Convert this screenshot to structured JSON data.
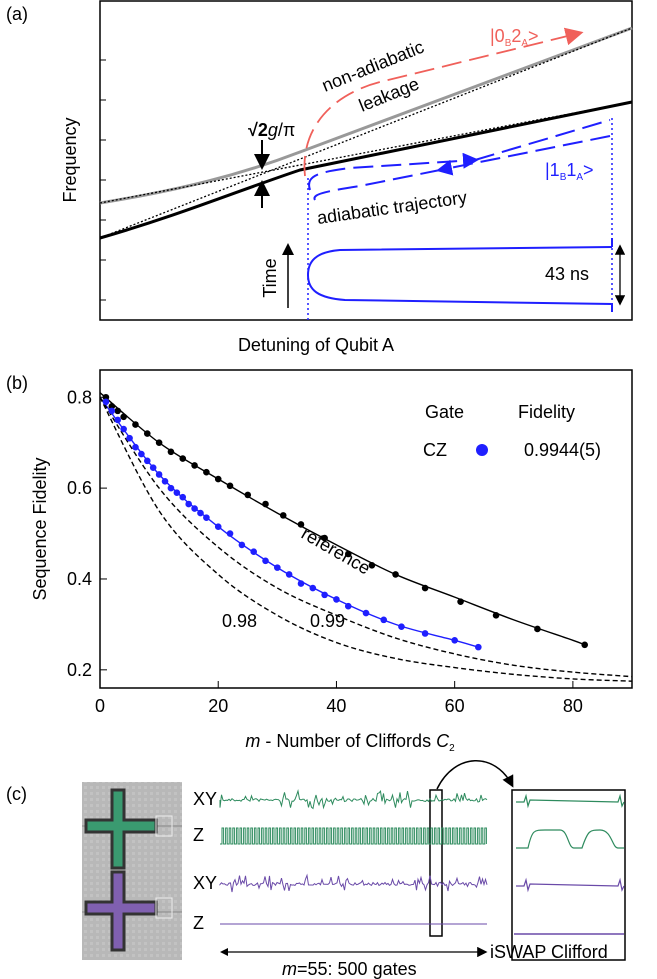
{
  "panel_a": {
    "label": "(a)",
    "y_axis_label": "Frequency",
    "x_axis_label": "Detuning of Qubit A",
    "coupling": [
      "√2",
      "g",
      "/",
      "π"
    ],
    "leak_1": "non-adiabatic",
    "leak_2": "leakage",
    "state_02": [
      "|0",
      "B",
      "2",
      "A",
      ">"
    ],
    "state_11": [
      "|1",
      "B",
      "1",
      "A",
      ">"
    ],
    "trajectory": "adiabatic trajectory",
    "time": "Time",
    "duration": "43 ns"
  },
  "chart_data": {
    "type": "scatter",
    "label": "(b)",
    "y_axis_label": "Sequence Fidelity",
    "x_axis_label": [
      "m",
      " - Number of Cliffords ",
      "C",
      "2"
    ],
    "xlim": [
      0,
      90
    ],
    "xticks": [
      0,
      20,
      40,
      60,
      80
    ],
    "ylim": [
      0.16,
      0.86
    ],
    "yticks": [
      0.2,
      0.4,
      0.6,
      0.8
    ],
    "legend": {
      "headers": [
        "Gate",
        "Fidelity"
      ],
      "fidelity": "0.9944(5)"
    },
    "series": [
      {
        "name": "reference",
        "color": "#000000",
        "x": [
          1,
          2,
          3,
          4,
          6,
          8,
          10,
          12,
          14,
          16,
          18,
          20,
          22,
          25,
          28,
          31,
          34,
          38,
          42,
          46,
          50,
          55,
          61,
          67,
          74,
          82
        ],
        "values": [
          0.8,
          0.78,
          0.77,
          0.757,
          0.74,
          0.72,
          0.7,
          0.68,
          0.665,
          0.65,
          0.635,
          0.62,
          0.605,
          0.585,
          0.565,
          0.54,
          0.52,
          0.49,
          0.455,
          0.43,
          0.41,
          0.38,
          0.35,
          0.32,
          0.29,
          0.255
        ]
      },
      {
        "name": "CZ",
        "color": "#1f1fff",
        "x": [
          1,
          2,
          3,
          4,
          5,
          6,
          7,
          8,
          9,
          10,
          11,
          12,
          13,
          14,
          15,
          16,
          17,
          18,
          20,
          22,
          24,
          26,
          28,
          30,
          32,
          34,
          36,
          38,
          40,
          42,
          45,
          48,
          51,
          55,
          60,
          64
        ],
        "values": [
          0.79,
          0.77,
          0.75,
          0.73,
          0.71,
          0.69,
          0.675,
          0.66,
          0.645,
          0.63,
          0.615,
          0.6,
          0.59,
          0.58,
          0.565,
          0.555,
          0.545,
          0.535,
          0.515,
          0.5,
          0.475,
          0.46,
          0.44,
          0.425,
          0.41,
          0.39,
          0.38,
          0.365,
          0.355,
          0.34,
          0.325,
          0.31,
          0.295,
          0.28,
          0.265,
          0.25
        ]
      }
    ],
    "fits": [
      {
        "color": "#000000",
        "x": [
          0,
          10,
          20,
          30,
          40,
          50,
          60,
          70,
          80,
          82
        ],
        "values": [
          0.81,
          0.7,
          0.62,
          0.545,
          0.475,
          0.41,
          0.36,
          0.31,
          0.265,
          0.255
        ]
      },
      {
        "color": "#1f1fff",
        "x": [
          0,
          10,
          20,
          30,
          40,
          50,
          60,
          64
        ],
        "values": [
          0.8,
          0.63,
          0.515,
          0.425,
          0.355,
          0.3,
          0.265,
          0.25
        ]
      },
      {
        "name": "0.99",
        "dashed": true,
        "color": "#000000",
        "x": [
          0,
          10,
          20,
          30,
          40,
          50,
          60,
          70,
          80,
          90
        ],
        "values": [
          0.8,
          0.6,
          0.47,
          0.38,
          0.32,
          0.27,
          0.235,
          0.21,
          0.195,
          0.185
        ]
      },
      {
        "name": "0.98",
        "dashed": true,
        "color": "#000000",
        "x": [
          0,
          10,
          20,
          30,
          40,
          50,
          60,
          70,
          80,
          90
        ],
        "values": [
          0.8,
          0.55,
          0.41,
          0.32,
          0.26,
          0.225,
          0.205,
          0.19,
          0.18,
          0.175
        ]
      }
    ]
  },
  "panel_c": {
    "label": "(c)",
    "rows": [
      "XY",
      "Z",
      "XY",
      "Z"
    ],
    "sequence": [
      "m",
      "=55: 500 gates"
    ],
    "zoom": "iSWAP Clifford"
  }
}
